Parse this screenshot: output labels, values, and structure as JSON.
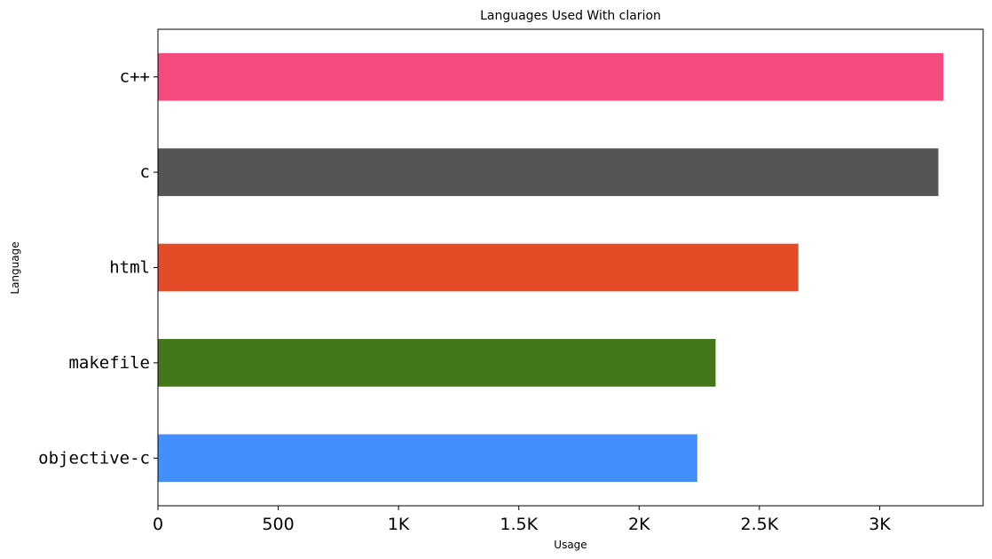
{
  "chart_data": {
    "type": "bar",
    "orientation": "horizontal",
    "title": "Languages Used With clarion",
    "xlabel": "Usage",
    "ylabel": "Language",
    "categories": [
      "c++",
      "c",
      "html",
      "makefile",
      "objective-c"
    ],
    "values": [
      3265,
      3244,
      2662,
      2318,
      2242
    ],
    "colors": [
      "#f34b7d",
      "#555555",
      "#e34c26",
      "#427819",
      "#438eff"
    ],
    "xlim": [
      0,
      3430
    ],
    "xticks": [
      0,
      500,
      1000,
      1500,
      2000,
      2500,
      3000
    ],
    "xtick_labels": [
      "0",
      "500",
      "1K",
      "1.5K",
      "2K",
      "2.5K",
      "3K"
    ],
    "grid": false,
    "legend": "none"
  }
}
